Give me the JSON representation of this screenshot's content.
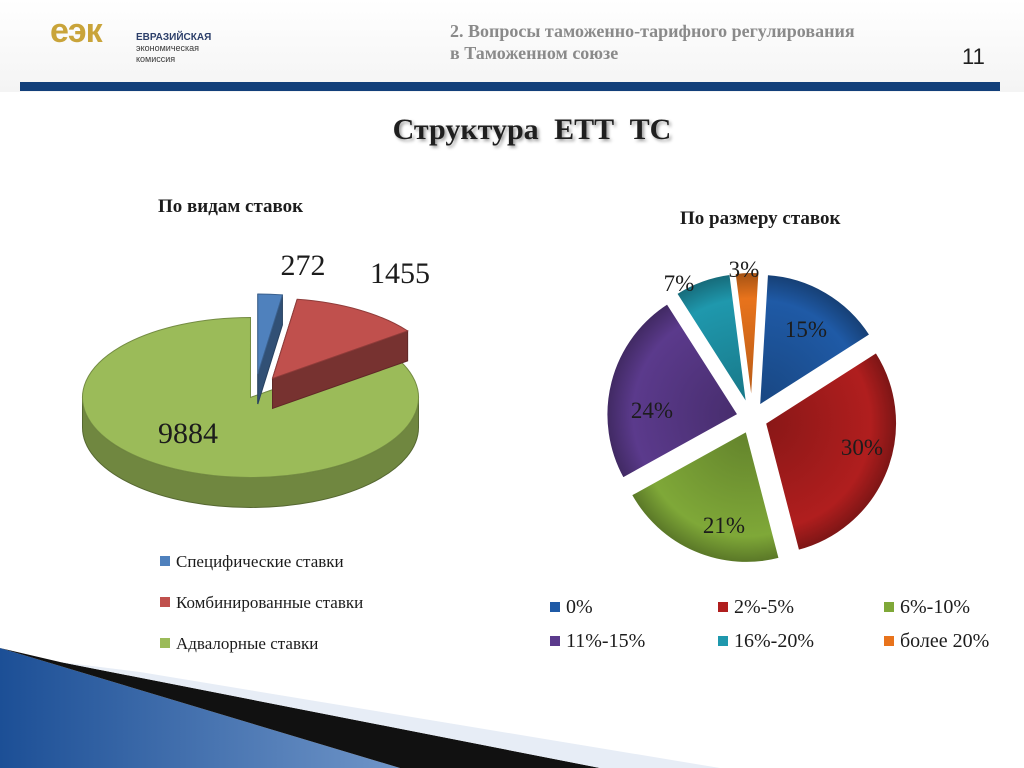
{
  "header": {
    "logo_mark": "еэк",
    "logo_line1": "ЕВРАЗИЙСКАЯ",
    "logo_line2": "экономическая",
    "logo_line3": "комиссия",
    "section_line1": "2. Вопросы таможенно-тарифного регулирования",
    "section_line2": "в Таможенном союзе",
    "page_number": "11"
  },
  "slide_title": "Структура ЕТТ ТС",
  "colors": {
    "header_bar": "#123f7a",
    "logo": "#c9a43a"
  },
  "chart_data": [
    {
      "type": "pie",
      "title": "По видам ставок",
      "style": "3d-exploded",
      "legend_position": "bottom",
      "slices": [
        {
          "label": "Специфические ставки",
          "value": 272,
          "value_label": "272",
          "color": "#4f81bd"
        },
        {
          "label": "Комбинированные ставки",
          "value": 1455,
          "value_label": "1455",
          "color": "#c0504d"
        },
        {
          "label": "Адвалорные ставки",
          "value": 9884,
          "value_label": "9884",
          "color": "#9bbb59"
        }
      ]
    },
    {
      "type": "pie",
      "title": "По размеру ставок",
      "style": "exploded",
      "legend_position": "bottom",
      "slices": [
        {
          "label": "0%",
          "value": 15,
          "value_label": "15%",
          "color": "#1f5aa6"
        },
        {
          "label": "2%-5%",
          "value": 30,
          "value_label": "30%",
          "color": "#b01e1e"
        },
        {
          "label": "6%-10%",
          "value": 21,
          "value_label": "21%",
          "color": "#7fa838"
        },
        {
          "label": "11%-15%",
          "value": 24,
          "value_label": "24%",
          "color": "#5b3a8c"
        },
        {
          "label": "16%-20%",
          "value": 7,
          "value_label": "7%",
          "color": "#1f98ad"
        },
        {
          "label": "более 20%",
          "value": 3,
          "value_label": "3%",
          "color": "#e8731c"
        }
      ]
    }
  ]
}
